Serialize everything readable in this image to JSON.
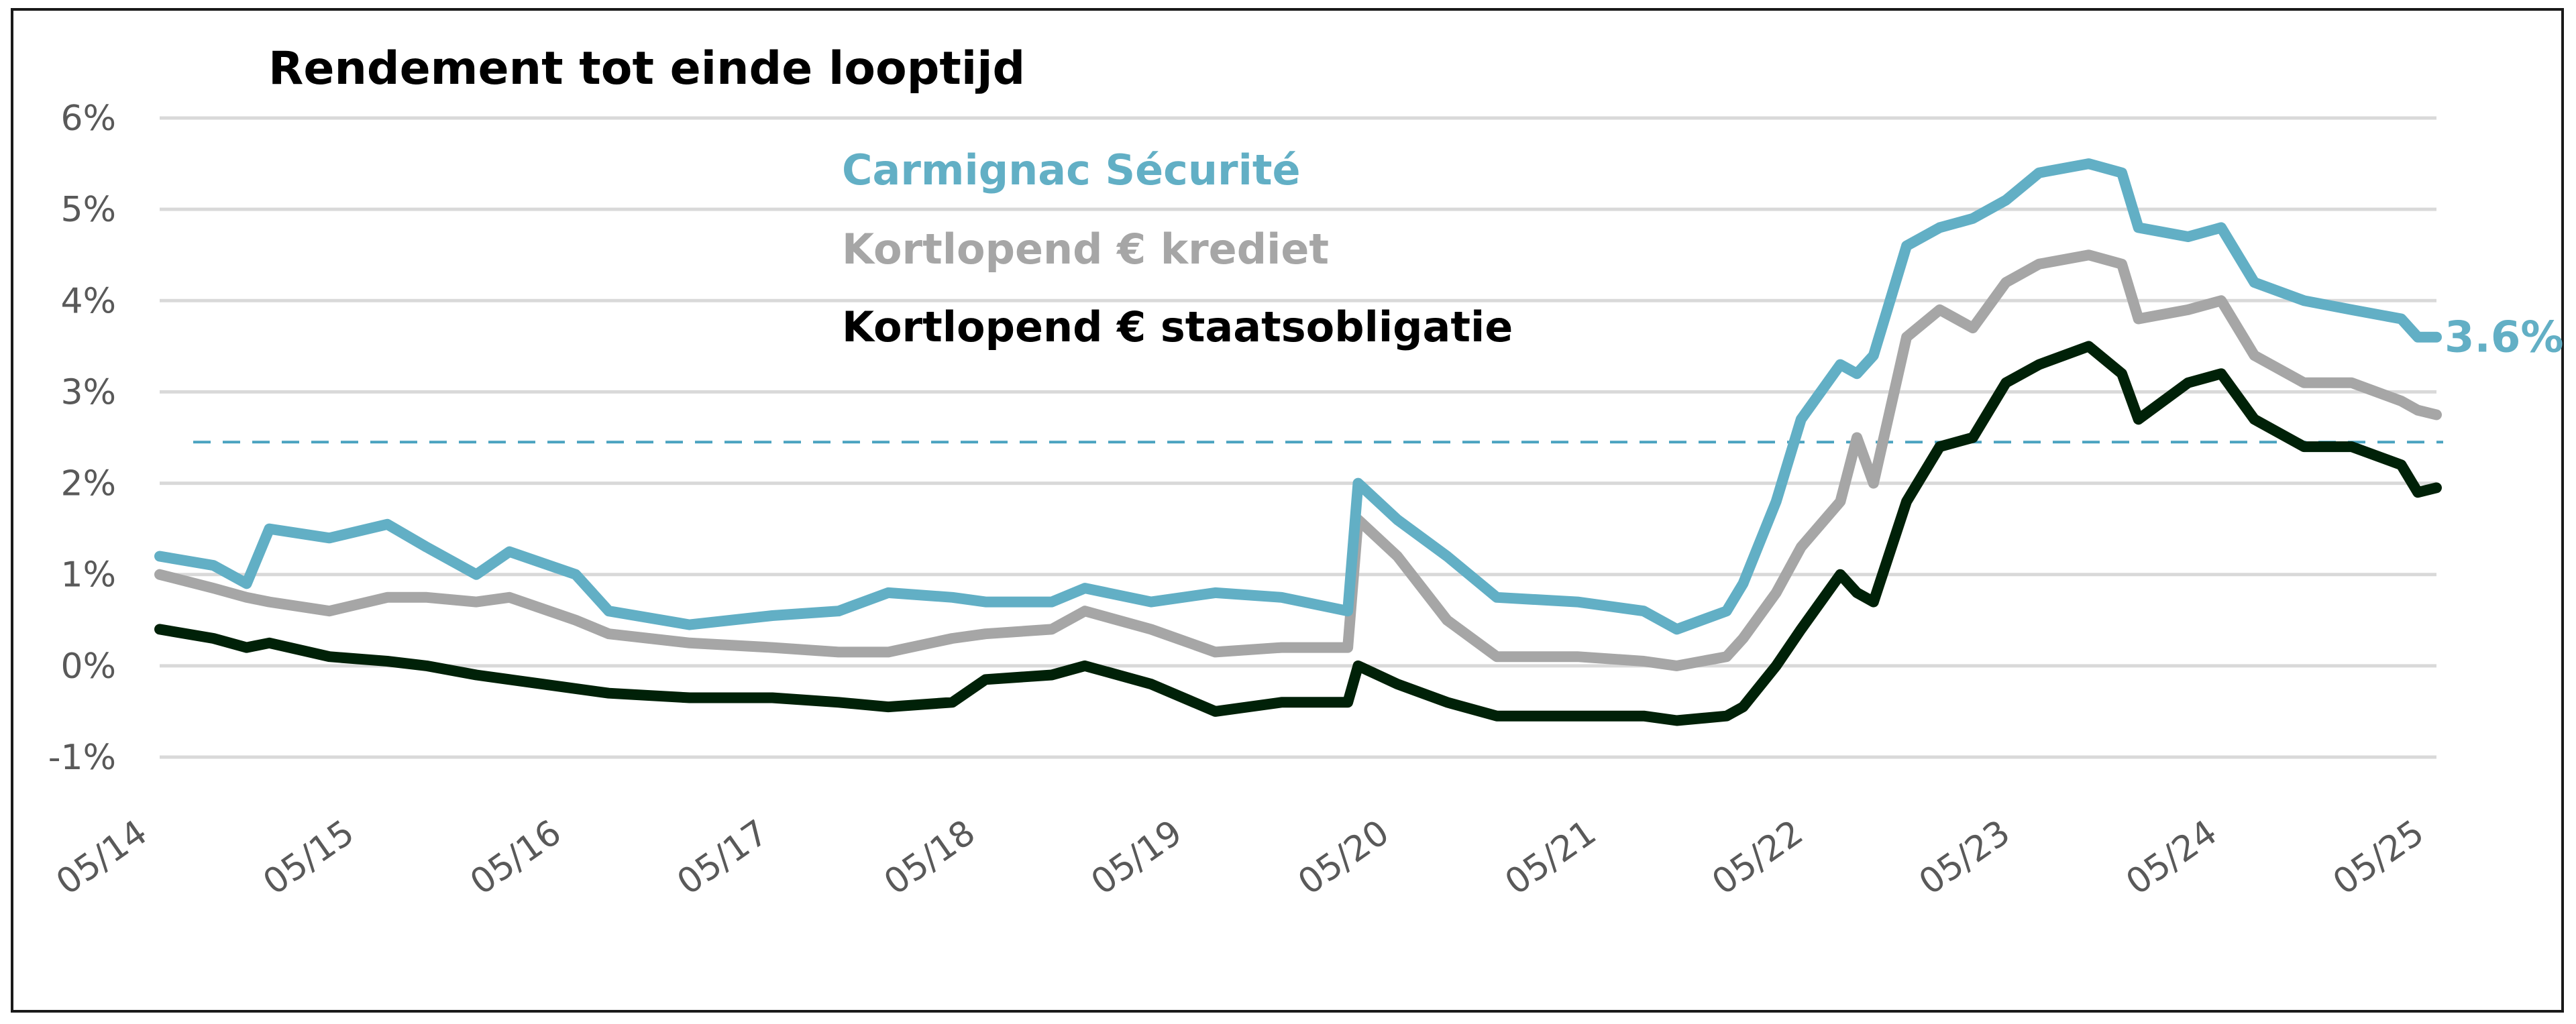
{
  "chart_data": {
    "type": "line",
    "title": "Rendement tot einde looptijd",
    "xlabel": "",
    "ylabel": "",
    "xlim": [
      2014.37,
      2025.37
    ],
    "ylim": [
      -1,
      6
    ],
    "grid": true,
    "legend_position": "top-center",
    "y_ticks": [
      {
        "v": 6,
        "label": "6%"
      },
      {
        "v": 5,
        "label": "5%"
      },
      {
        "v": 4,
        "label": "4%"
      },
      {
        "v": 3,
        "label": "3%"
      },
      {
        "v": 2,
        "label": "2%"
      },
      {
        "v": 1,
        "label": "1%"
      },
      {
        "v": 0,
        "label": "0%"
      },
      {
        "v": -1,
        "label": "-1%"
      }
    ],
    "x_ticks": [
      {
        "v": 2014.37,
        "label": "05/14"
      },
      {
        "v": 2015.37,
        "label": "05/15"
      },
      {
        "v": 2016.37,
        "label": "05/16"
      },
      {
        "v": 2017.37,
        "label": "05/17"
      },
      {
        "v": 2018.37,
        "label": "05/18"
      },
      {
        "v": 2019.37,
        "label": "05/19"
      },
      {
        "v": 2020.37,
        "label": "05/20"
      },
      {
        "v": 2021.37,
        "label": "05/21"
      },
      {
        "v": 2022.37,
        "label": "05/22"
      },
      {
        "v": 2023.37,
        "label": "05/23"
      },
      {
        "v": 2024.37,
        "label": "05/24"
      },
      {
        "v": 2025.37,
        "label": "05/25"
      }
    ],
    "reference_line": {
      "value": 2.45,
      "color": "#4aa3c0",
      "style": "dashed"
    },
    "end_label": {
      "series": "Carmignac Sécurité",
      "text": "3.6%"
    },
    "x": [
      2014.37,
      2014.63,
      2014.79,
      2014.9,
      2015.19,
      2015.47,
      2015.66,
      2015.9,
      2016.06,
      2016.38,
      2016.54,
      2016.93,
      2017.33,
      2017.65,
      2017.89,
      2018.2,
      2018.36,
      2018.68,
      2018.84,
      2019.16,
      2019.47,
      2019.79,
      2020.11,
      2020.16,
      2020.35,
      2020.59,
      2020.83,
      2021.22,
      2021.54,
      2021.7,
      2021.94,
      2022.02,
      2022.18,
      2022.3,
      2022.49,
      2022.57,
      2022.65,
      2022.81,
      2022.97,
      2023.13,
      2023.29,
      2023.45,
      2023.69,
      2023.85,
      2023.93,
      2024.17,
      2024.33,
      2024.49,
      2024.73,
      2024.96,
      2025.2,
      2025.28,
      2025.37
    ],
    "series": [
      {
        "name": "Carmignac Sécurité",
        "color": "#62afc5",
        "values": [
          1.2,
          1.1,
          0.9,
          1.5,
          1.4,
          1.55,
          1.3,
          1.0,
          1.25,
          1.0,
          0.6,
          0.45,
          0.55,
          0.6,
          0.8,
          0.75,
          0.7,
          0.7,
          0.85,
          0.7,
          0.8,
          0.75,
          0.6,
          2.0,
          1.6,
          1.2,
          0.75,
          0.7,
          0.6,
          0.4,
          0.6,
          0.9,
          1.8,
          2.7,
          3.3,
          3.2,
          3.4,
          4.6,
          4.8,
          4.9,
          5.1,
          5.4,
          5.5,
          5.4,
          4.8,
          4.7,
          4.8,
          4.2,
          4.0,
          3.9,
          3.8,
          3.6,
          3.6
        ]
      },
      {
        "name": "Kortlopend €  krediet",
        "color": "#a6a6a6",
        "values": [
          1.0,
          0.85,
          0.75,
          0.7,
          0.6,
          0.75,
          0.75,
          0.7,
          0.75,
          0.5,
          0.35,
          0.25,
          0.2,
          0.15,
          0.15,
          0.3,
          0.35,
          0.4,
          0.6,
          0.4,
          0.15,
          0.2,
          0.2,
          1.6,
          1.2,
          0.5,
          0.1,
          0.1,
          0.05,
          0.0,
          0.1,
          0.3,
          0.8,
          1.3,
          1.8,
          2.5,
          2.0,
          3.6,
          3.9,
          3.7,
          4.2,
          4.4,
          4.5,
          4.4,
          3.8,
          3.9,
          4.0,
          3.4,
          3.1,
          3.1,
          2.9,
          2.8,
          2.75
        ]
      },
      {
        "name": "Kortlopend €  staatsobligatie",
        "color": "#002108",
        "values": [
          0.4,
          0.3,
          0.2,
          0.25,
          0.1,
          0.05,
          0.0,
          -0.1,
          -0.15,
          -0.25,
          -0.3,
          -0.35,
          -0.35,
          -0.4,
          -0.45,
          -0.4,
          -0.15,
          -0.1,
          0.0,
          -0.2,
          -0.5,
          -0.4,
          -0.4,
          0.0,
          -0.2,
          -0.4,
          -0.55,
          -0.55,
          -0.55,
          -0.6,
          -0.55,
          -0.45,
          0.0,
          0.4,
          1.0,
          0.8,
          0.7,
          1.8,
          2.4,
          2.5,
          3.1,
          3.3,
          3.5,
          3.2,
          2.7,
          3.1,
          3.2,
          2.7,
          2.4,
          2.4,
          2.2,
          1.9,
          1.95
        ]
      }
    ]
  }
}
